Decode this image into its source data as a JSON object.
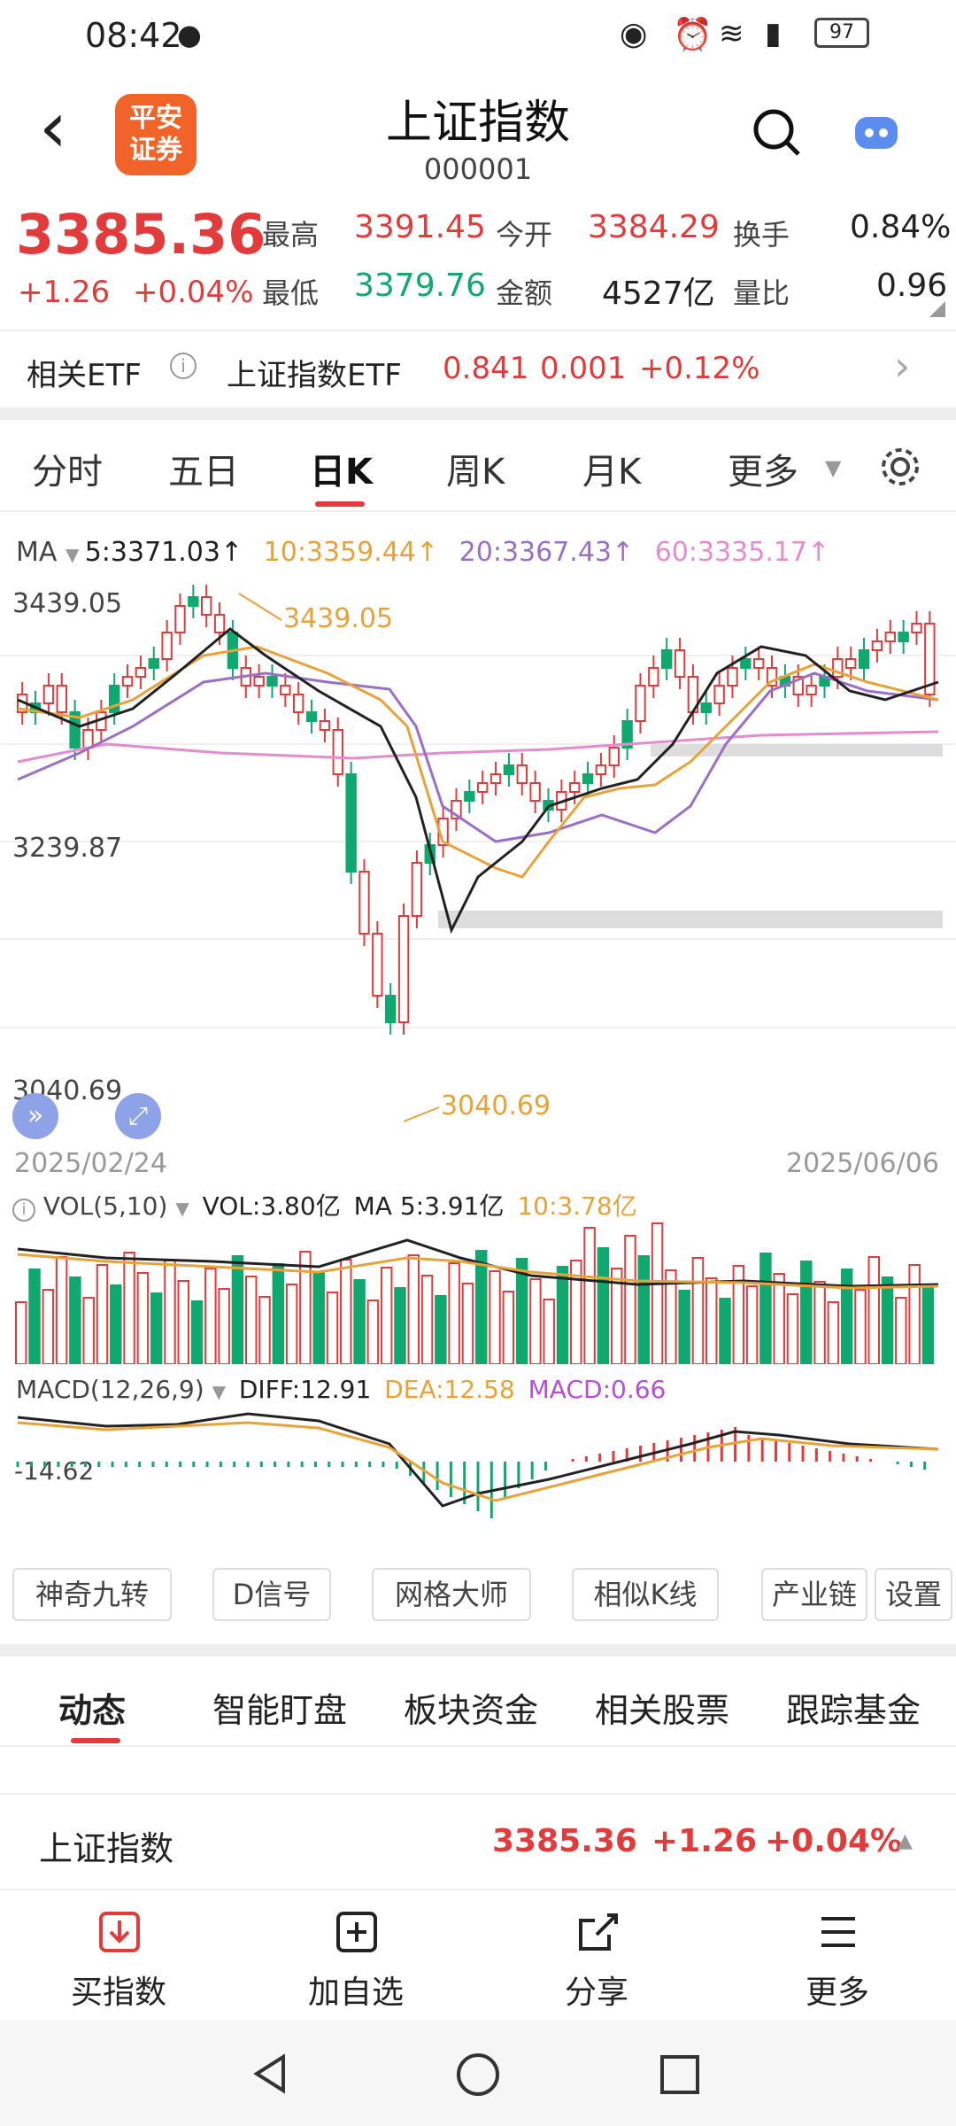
{
  "status_bar": {
    "time": "08:42",
    "battery": "97"
  },
  "header": {
    "back": "‹",
    "logo_line1": "平安",
    "logo_line2": "证券",
    "title": "上证指数",
    "code": "000001"
  },
  "quote": {
    "price": "3385.36",
    "change": "+1.26",
    "change_pct": "+0.04%",
    "high_label": "最高",
    "high": "3391.45",
    "open_label": "今开",
    "open": "3384.29",
    "turnover_label": "换手",
    "turnover": "0.84%",
    "low_label": "最低",
    "low": "3379.76",
    "amount_label": "金额",
    "amount": "4527亿",
    "vol_ratio_label": "量比",
    "vol_ratio": "0.96"
  },
  "etf": {
    "label": "相关ETF",
    "name": "上证指数ETF",
    "price": "0.841",
    "change": "0.001",
    "change_pct": "+0.12%"
  },
  "chart_tabs": [
    "分时",
    "五日",
    "日K",
    "周K",
    "月K",
    "更多"
  ],
  "ma": {
    "label": "MA",
    "ma5": "5:3371.03↑",
    "ma10": "10:3359.44↑",
    "ma20": "20:3367.43↑",
    "ma60": "60:3335.17↑"
  },
  "chart": {
    "y_high": "3439.05",
    "y_mid": "3239.87",
    "y_low": "3040.69",
    "peak_label": "3439.05",
    "trough_label": "3040.69",
    "date_start": "2025/02/24",
    "date_end": "2025/06/06"
  },
  "vol": {
    "label": "VOL(5,10)",
    "vol": "VOL:3.80亿",
    "ma5": "MA 5:3.91亿",
    "ma10": "10:3.78亿"
  },
  "macd": {
    "label": "MACD(12,26,9)",
    "diff": "DIFF:12.91",
    "dea": "DEA:12.58",
    "macd": "MACD:0.66",
    "axis": "-14.62"
  },
  "tools": [
    "神奇九转",
    "D信号",
    "网格大师",
    "相似K线",
    "产业链",
    "设置"
  ],
  "info_tabs": [
    "动态",
    "智能盯盘",
    "板块资金",
    "相关股票",
    "跟踪基金"
  ],
  "ticker": {
    "name": "上证指数",
    "price": "3385.36",
    "change": "+1.26",
    "change_pct": "+0.04%"
  },
  "actions": [
    "买指数",
    "加自选",
    "分享",
    "更多"
  ],
  "colors": {
    "up": "#e23b3b",
    "down": "#10a86e",
    "ma5": "#222222",
    "ma10": "#e8a23a",
    "ma20": "#9b6fc6",
    "ma60": "#e58bd0"
  }
}
